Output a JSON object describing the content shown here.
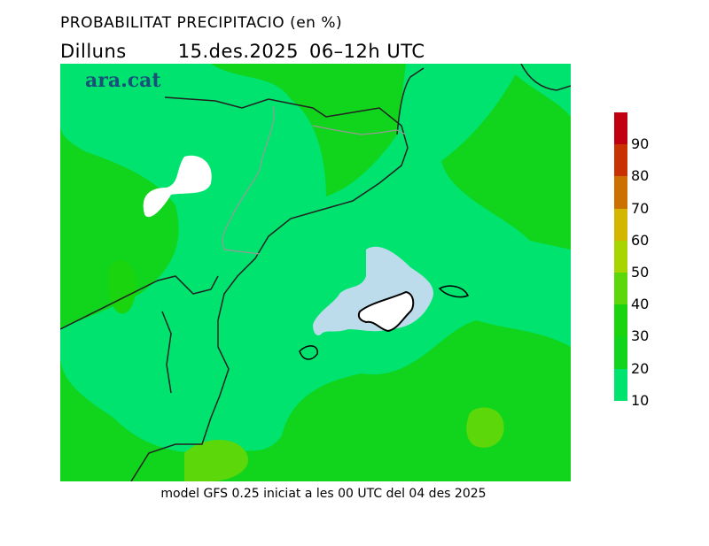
{
  "title": "PROBABILITAT PRECIPITACIO (en %)",
  "subtitle": {
    "day": "Dilluns",
    "date": "15.des.2025",
    "period": "06–12h UTC"
  },
  "logo": "ara.cat",
  "footer": "model GFS 0.25 iniciat a les 00 UTC del 04 des 2025",
  "legend": {
    "unit": "%",
    "labels": [
      "10",
      "20",
      "30",
      "40",
      "50",
      "60",
      "70",
      "80",
      "90"
    ],
    "colors": [
      "#00e36e",
      "#11d41c",
      "#1ad50e",
      "#5cd80a",
      "#a8d400",
      "#d2b600",
      "#cc7000",
      "#c83200",
      "#c00010"
    ]
  },
  "map_colors": {
    "lt10": "#ffffff",
    "low": "#bcdcec",
    "c10": "#00e36e",
    "c20": "#11d41c",
    "c30": "#1ad50e",
    "c40": "#5cd80a"
  }
}
